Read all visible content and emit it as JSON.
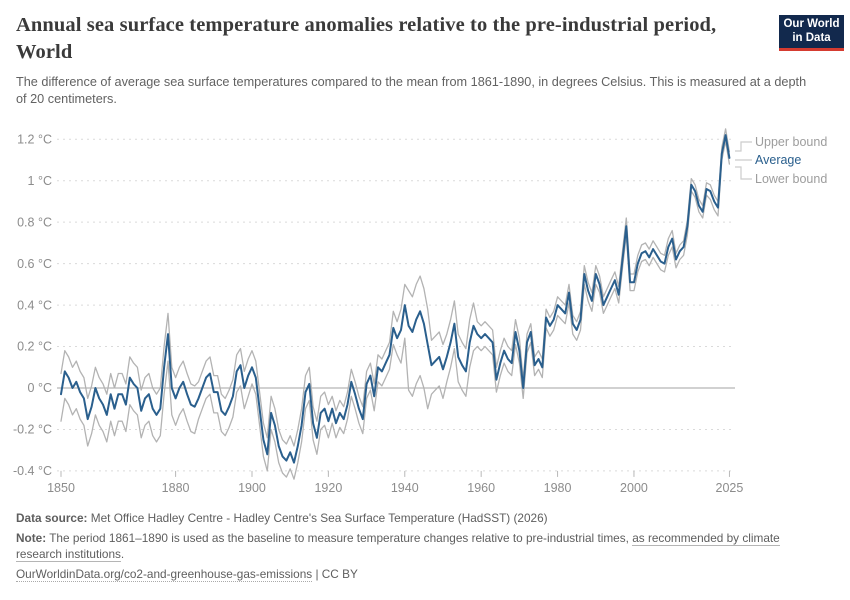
{
  "header": {
    "title": "Annual sea surface temperature anomalies relative to the pre-industrial period, World",
    "subtitle": "The difference of average sea surface temperatures compared to the mean from 1861-1890, in degrees Celsius. This is measured at a depth of 20 centimeters.",
    "logo": {
      "line1": "Our World",
      "line2": "in Data",
      "bg_color": "#12294d",
      "accent_color": "#d53b30"
    }
  },
  "legend": {
    "upper_label": "Upper bound",
    "average_label": "Average",
    "lower_label": "Lower bound"
  },
  "footer": {
    "source_label": "Data source:",
    "source_text": " Met Office Hadley Centre - Hadley Centre's Sea Surface Temperature (HadSST) (2026)",
    "note_label": "Note:",
    "note_text": " The period 1861–1890 is used as the baseline to measure temperature changes relative to pre-industrial times, ",
    "note_link": "as recommended by climate research institutions",
    "note_end": ".",
    "url": "OurWorldinData.org/co2-and-greenhouse-gas-emissions",
    "license": " | CC BY"
  },
  "chart_data": {
    "type": "line",
    "title": "Annual sea surface temperature anomalies relative to the pre-industrial period, World",
    "xlabel": "",
    "ylabel": "",
    "unit": "°C",
    "grid": true,
    "legend_position": "right",
    "xlim": [
      1850,
      2025
    ],
    "ylim": [
      -0.45,
      1.28
    ],
    "x_start": 1850,
    "x": "years 1850..2025 step 1",
    "xticks": [
      1850,
      1880,
      1900,
      1920,
      1940,
      1960,
      1980,
      2000,
      2025
    ],
    "yticks": [
      {
        "value": 1.2,
        "label": "1.2 °C"
      },
      {
        "value": 1.0,
        "label": "1 °C"
      },
      {
        "value": 0.8,
        "label": "0.8 °C"
      },
      {
        "value": 0.6,
        "label": "0.6 °C"
      },
      {
        "value": 0.4,
        "label": "0.4 °C"
      },
      {
        "value": 0.2,
        "label": "0.2 °C"
      },
      {
        "value": 0.0,
        "label": "0 °C"
      },
      {
        "value": -0.2,
        "label": "-0.2 °C"
      },
      {
        "value": -0.4,
        "label": "-0.4 °C"
      }
    ],
    "colors": {
      "average": "#2a5f8d",
      "bounds": "#b3b3b3",
      "grid_dashed": "#dadada",
      "zero_line": "#a3a3a3",
      "axis_text": "#8c8c8c"
    },
    "series": [
      {
        "name": "Upper bound",
        "color": "#b3b3b3",
        "values": [
          0.07,
          0.18,
          0.15,
          0.1,
          0.13,
          0.08,
          0.05,
          -0.05,
          0.01,
          0.1,
          0.05,
          0.02,
          -0.03,
          0.07,
          0.0,
          0.07,
          0.07,
          0.02,
          0.15,
          0.12,
          0.1,
          -0.01,
          0.05,
          0.07,
          0.0,
          -0.03,
          0.0,
          0.2,
          0.36,
          0.1,
          0.05,
          0.1,
          0.13,
          0.07,
          0.02,
          0.01,
          0.03,
          0.08,
          0.13,
          0.15,
          0.06,
          0.06,
          -0.03,
          -0.05,
          -0.01,
          0.04,
          0.16,
          0.19,
          0.08,
          0.14,
          0.18,
          0.13,
          -0.02,
          -0.17,
          -0.24,
          -0.04,
          -0.1,
          -0.2,
          -0.25,
          -0.27,
          -0.23,
          -0.28,
          -0.2,
          -0.1,
          0.06,
          0.1,
          -0.09,
          -0.16,
          -0.04,
          -0.02,
          -0.08,
          -0.04,
          -0.11,
          -0.06,
          -0.09,
          -0.02,
          0.09,
          0.03,
          -0.04,
          -0.09,
          0.08,
          0.12,
          0.02,
          0.16,
          0.14,
          0.18,
          0.22,
          0.37,
          0.32,
          0.38,
          0.5,
          0.47,
          0.44,
          0.5,
          0.54,
          0.48,
          0.38,
          0.23,
          0.25,
          0.27,
          0.21,
          0.26,
          0.33,
          0.42,
          0.26,
          0.22,
          0.19,
          0.33,
          0.41,
          0.32,
          0.3,
          0.32,
          0.3,
          0.28,
          0.1,
          0.18,
          0.24,
          0.2,
          0.18,
          0.33,
          0.24,
          0.04,
          0.26,
          0.31,
          0.15,
          0.18,
          0.14,
          0.38,
          0.34,
          0.37,
          0.44,
          0.42,
          0.4,
          0.5,
          0.35,
          0.32,
          0.37,
          0.59,
          0.51,
          0.46,
          0.59,
          0.54,
          0.44,
          0.48,
          0.52,
          0.56,
          0.49,
          0.66,
          0.82,
          0.55,
          0.55,
          0.64,
          0.69,
          0.7,
          0.67,
          0.71,
          0.68,
          0.65,
          0.64,
          0.72,
          0.76,
          0.65,
          0.69,
          0.71,
          0.81,
          1.01,
          0.98,
          0.91,
          0.88,
          0.99,
          0.98,
          0.93,
          0.9,
          1.16,
          1.25,
          1.14
        ]
      },
      {
        "name": "Average",
        "color": "#2a5f8d",
        "values": [
          -0.03,
          0.08,
          0.05,
          0.0,
          0.03,
          -0.02,
          -0.05,
          -0.15,
          -0.09,
          0.0,
          -0.05,
          -0.08,
          -0.13,
          -0.03,
          -0.1,
          -0.03,
          -0.03,
          -0.08,
          0.05,
          0.02,
          0.0,
          -0.11,
          -0.05,
          -0.03,
          -0.1,
          -0.13,
          -0.1,
          0.1,
          0.26,
          0.0,
          -0.05,
          0.0,
          0.03,
          -0.03,
          -0.08,
          -0.09,
          -0.05,
          0.0,
          0.05,
          0.07,
          -0.02,
          -0.02,
          -0.11,
          -0.13,
          -0.09,
          -0.04,
          0.08,
          0.11,
          0.0,
          0.06,
          0.1,
          0.05,
          -0.1,
          -0.25,
          -0.32,
          -0.12,
          -0.18,
          -0.28,
          -0.33,
          -0.35,
          -0.31,
          -0.36,
          -0.28,
          -0.18,
          -0.02,
          0.02,
          -0.17,
          -0.24,
          -0.12,
          -0.1,
          -0.16,
          -0.1,
          -0.17,
          -0.12,
          -0.15,
          -0.08,
          0.03,
          -0.03,
          -0.1,
          -0.15,
          0.02,
          0.06,
          -0.04,
          0.1,
          0.08,
          0.12,
          0.16,
          0.29,
          0.24,
          0.28,
          0.4,
          0.3,
          0.27,
          0.33,
          0.37,
          0.31,
          0.21,
          0.11,
          0.13,
          0.15,
          0.09,
          0.15,
          0.22,
          0.31,
          0.15,
          0.11,
          0.08,
          0.22,
          0.3,
          0.26,
          0.24,
          0.26,
          0.24,
          0.22,
          0.04,
          0.12,
          0.18,
          0.14,
          0.12,
          0.27,
          0.18,
          0.0,
          0.22,
          0.27,
          0.11,
          0.14,
          0.1,
          0.34,
          0.3,
          0.33,
          0.4,
          0.38,
          0.36,
          0.46,
          0.31,
          0.28,
          0.33,
          0.55,
          0.47,
          0.42,
          0.55,
          0.5,
          0.4,
          0.44,
          0.48,
          0.52,
          0.45,
          0.62,
          0.78,
          0.51,
          0.51,
          0.6,
          0.65,
          0.66,
          0.63,
          0.67,
          0.64,
          0.61,
          0.6,
          0.68,
          0.72,
          0.62,
          0.66,
          0.68,
          0.78,
          0.98,
          0.95,
          0.88,
          0.85,
          0.96,
          0.95,
          0.9,
          0.87,
          1.13,
          1.22,
          1.11
        ]
      },
      {
        "name": "Lower bound",
        "color": "#b3b3b3",
        "values": [
          -0.16,
          -0.05,
          -0.08,
          -0.13,
          -0.1,
          -0.15,
          -0.18,
          -0.28,
          -0.22,
          -0.13,
          -0.18,
          -0.21,
          -0.26,
          -0.16,
          -0.23,
          -0.16,
          -0.16,
          -0.21,
          -0.08,
          -0.11,
          -0.13,
          -0.24,
          -0.18,
          -0.16,
          -0.23,
          -0.26,
          -0.23,
          -0.03,
          0.13,
          -0.13,
          -0.18,
          -0.13,
          -0.1,
          -0.16,
          -0.21,
          -0.22,
          -0.15,
          -0.1,
          -0.05,
          -0.03,
          -0.12,
          -0.12,
          -0.21,
          -0.23,
          -0.19,
          -0.14,
          -0.02,
          0.01,
          -0.1,
          -0.04,
          0.02,
          -0.03,
          -0.18,
          -0.33,
          -0.4,
          -0.2,
          -0.26,
          -0.36,
          -0.41,
          -0.43,
          -0.39,
          -0.44,
          -0.36,
          -0.26,
          -0.1,
          -0.06,
          -0.25,
          -0.32,
          -0.2,
          -0.18,
          -0.24,
          -0.17,
          -0.24,
          -0.19,
          -0.22,
          -0.15,
          -0.04,
          -0.1,
          -0.17,
          -0.22,
          -0.05,
          -0.01,
          -0.11,
          0.03,
          0.01,
          0.05,
          0.09,
          0.21,
          0.16,
          0.12,
          0.24,
          -0.01,
          -0.04,
          0.02,
          0.06,
          0.0,
          -0.1,
          -0.03,
          -0.01,
          0.01,
          -0.05,
          0.03,
          0.1,
          0.19,
          0.03,
          -0.01,
          -0.04,
          0.1,
          0.18,
          0.2,
          0.18,
          0.2,
          0.18,
          0.16,
          -0.02,
          0.06,
          0.12,
          0.08,
          0.06,
          0.21,
          0.12,
          -0.05,
          0.17,
          0.22,
          0.06,
          0.09,
          0.05,
          0.29,
          0.25,
          0.28,
          0.35,
          0.33,
          0.31,
          0.41,
          0.26,
          0.23,
          0.28,
          0.5,
          0.42,
          0.37,
          0.5,
          0.46,
          0.36,
          0.4,
          0.44,
          0.48,
          0.41,
          0.58,
          0.74,
          0.47,
          0.47,
          0.56,
          0.61,
          0.62,
          0.59,
          0.63,
          0.6,
          0.57,
          0.56,
          0.64,
          0.68,
          0.58,
          0.62,
          0.64,
          0.74,
          0.95,
          0.92,
          0.85,
          0.82,
          0.93,
          0.91,
          0.86,
          0.83,
          1.1,
          1.19,
          1.08
        ]
      }
    ]
  }
}
